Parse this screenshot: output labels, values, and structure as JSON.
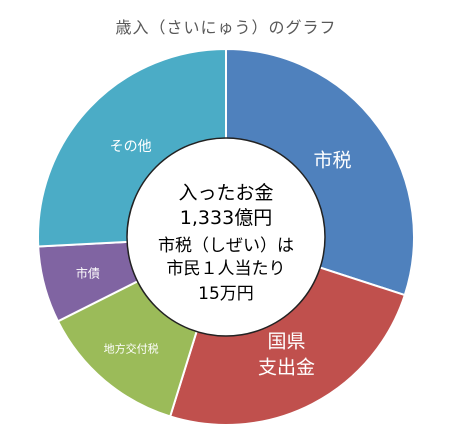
{
  "chart_data": {
    "type": "pie",
    "title": "歳入（さいにゅう）のグラフ",
    "slices": [
      {
        "label": "市税",
        "value": 0.3,
        "color": "#4f81bd",
        "label_lines": [
          "市税"
        ]
      },
      {
        "label": "国県支出金",
        "value": 0.248,
        "color": "#c0504d",
        "label_lines": [
          "国県",
          "支出金"
        ]
      },
      {
        "label": "地方交付税",
        "value": 0.128,
        "color": "#9bbb59",
        "label_lines": [
          "地方交付税"
        ]
      },
      {
        "label": "市債",
        "value": 0.066,
        "color": "#8064a2",
        "label_lines": [
          "市債"
        ]
      },
      {
        "label": "その他",
        "value": 0.258,
        "color": "#4bacc6",
        "label_lines": [
          "その他"
        ]
      }
    ],
    "center_text": {
      "line1": "入ったお金",
      "line2": "1,333億円",
      "line3": "市税（しぜい）は",
      "line4": "市民１人当たり",
      "line5": "15万円"
    }
  }
}
